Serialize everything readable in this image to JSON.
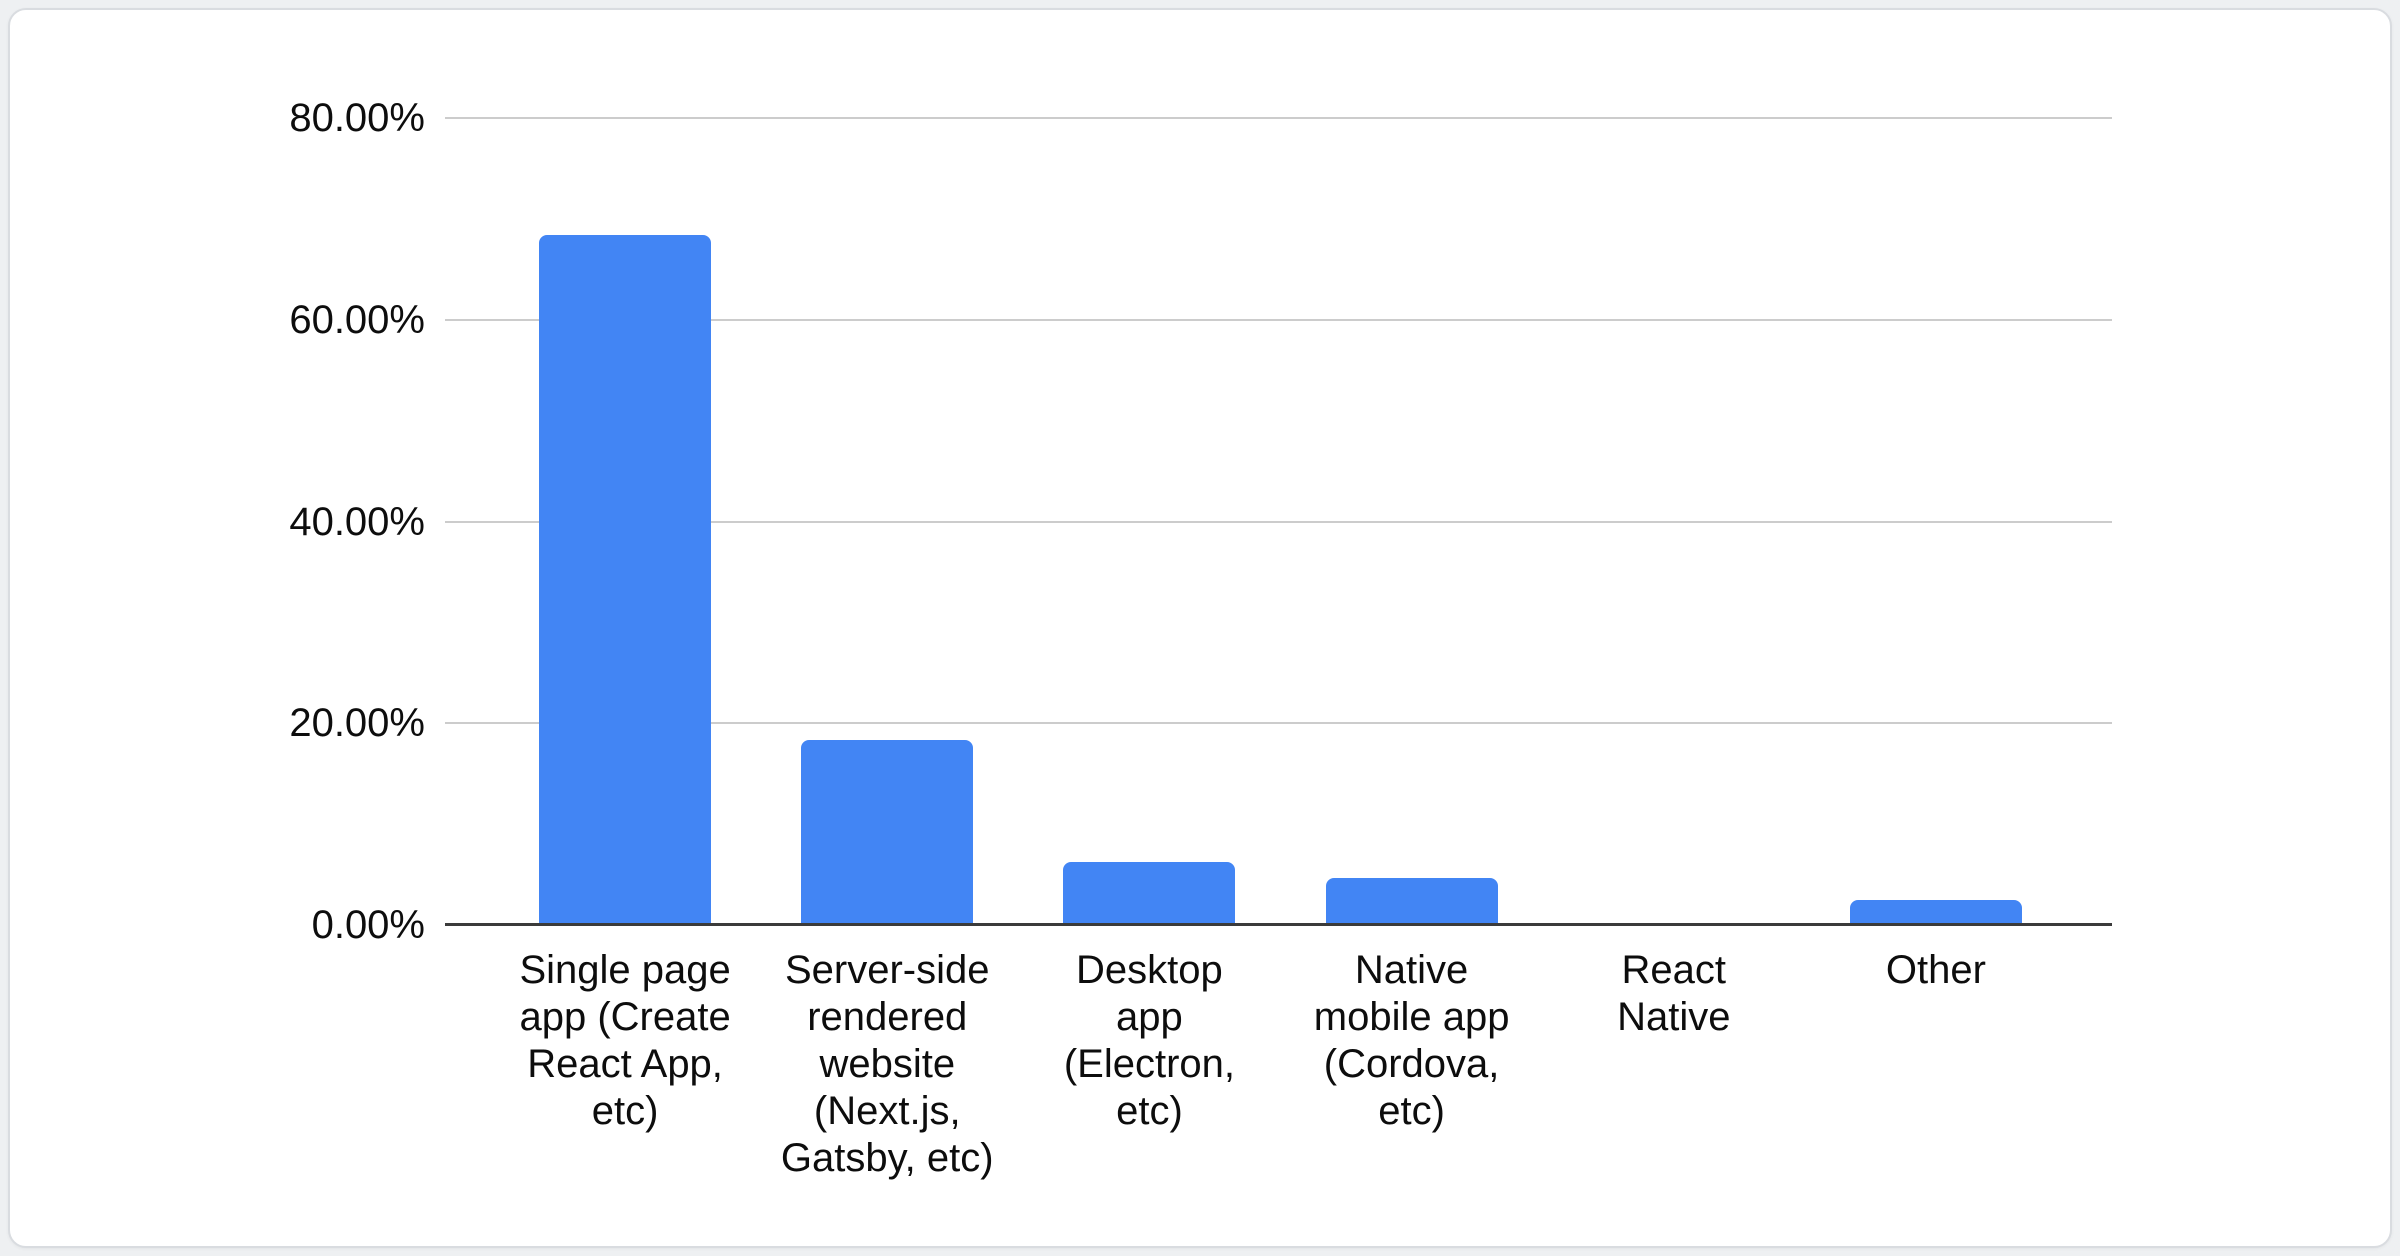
{
  "page": {
    "background_color": "#eef0f2",
    "card_background": "#ffffff",
    "card_border_color": "#d9dce0"
  },
  "chart_data": {
    "type": "bar",
    "title": "",
    "xlabel": "",
    "ylabel": "",
    "ylim": [
      0,
      80
    ],
    "grid": "horizontal",
    "legend": "none",
    "bar_color": "#4285f4",
    "gridline_color": "#cccccc",
    "axis_line_color": "#3b3b3b",
    "text_color": "#0d0d0d",
    "yticks": [
      {
        "value": 0,
        "label": "0.00%"
      },
      {
        "value": 20,
        "label": "20.00%"
      },
      {
        "value": 40,
        "label": "40.00%"
      },
      {
        "value": 60,
        "label": "60.00%"
      },
      {
        "value": 80,
        "label": "80.00%"
      }
    ],
    "categories": [
      "Single page app (Create React App, etc)",
      "Server-side rendered website (Next.js, Gatsby, etc)",
      "Desktop app (Electron, etc)",
      "Native mobile app (Cordova, etc)",
      "React Native",
      "Other"
    ],
    "category_lines": [
      [
        "Single page",
        "app (Create",
        "React App,",
        "etc)"
      ],
      [
        "Server-side",
        "rendered",
        "website",
        "(Next.js,",
        "Gatsby, etc)"
      ],
      [
        "Desktop",
        "app",
        "(Electron,",
        "etc)"
      ],
      [
        "Native",
        "mobile app",
        "(Cordova,",
        "etc)"
      ],
      [
        "React",
        "Native"
      ],
      [
        "Other"
      ]
    ],
    "values": [
      68.4,
      18.3,
      6.2,
      4.7,
      0,
      2.5
    ]
  }
}
